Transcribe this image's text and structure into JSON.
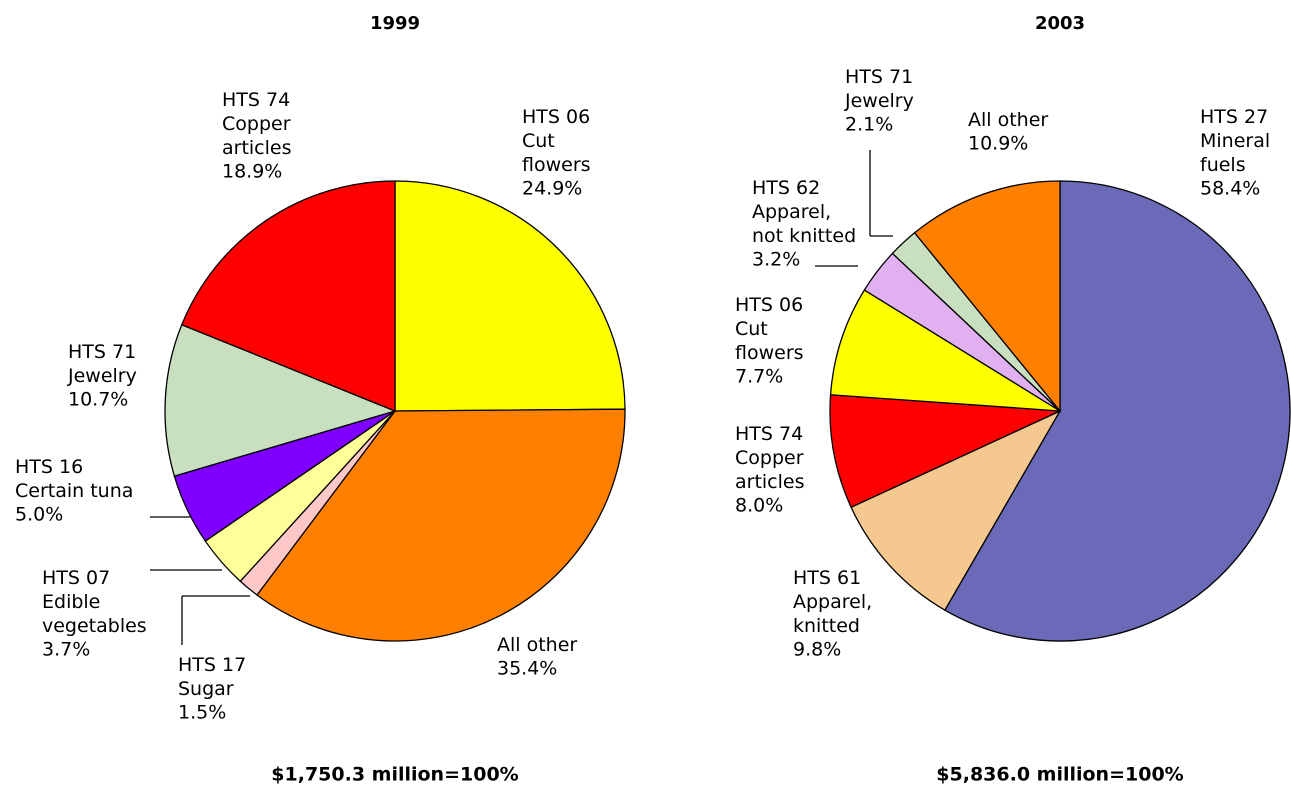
{
  "chart_data": [
    {
      "type": "pie",
      "title": "1999",
      "footer": "$1,750.3  million=100%",
      "categories": [
        "HTS 06\nCut\nflowers",
        "All other",
        "HTS 17\nSugar",
        "HTS 07\nEdible\nvegetables",
        "HTS 16\nCertain tuna",
        "HTS 71\nJewelry",
        "HTS 74\nCopper\narticles"
      ],
      "values": [
        24.9,
        35.4,
        1.5,
        3.7,
        5.0,
        10.7,
        18.9
      ],
      "value_labels": [
        "24.9%",
        "35.4%",
        "1.5%",
        "3.7%",
        "5.0%",
        "10.7%",
        "18.9%"
      ],
      "colors": [
        "#ffff00",
        "#ff8000",
        "#ffc8c8",
        "#ffff99",
        "#8000ff",
        "#c8e0c0",
        "#ff0000"
      ]
    },
    {
      "type": "pie",
      "title": "2003",
      "footer": "$5,836.0  million=100%",
      "categories": [
        "HTS 27\nMineral\nfuels",
        "HTS 61\nApparel,\nknitted",
        "HTS 74\nCopper\narticles",
        "HTS 06\nCut\nflowers",
        "HTS 62\nApparel,\nnot knitted",
        "HTS 71\nJewelry",
        "All other"
      ],
      "values": [
        58.4,
        9.8,
        8.0,
        7.7,
        3.2,
        2.1,
        10.9
      ],
      "value_labels": [
        "58.4%",
        "9.8%",
        "8.0%",
        "7.7%",
        "3.2%",
        "2.1%",
        "10.9%"
      ],
      "colors": [
        "#6a6ab8",
        "#f5c890",
        "#ff0000",
        "#ffff00",
        "#e0b0f0",
        "#c8e0c0",
        "#ff8000"
      ]
    }
  ]
}
